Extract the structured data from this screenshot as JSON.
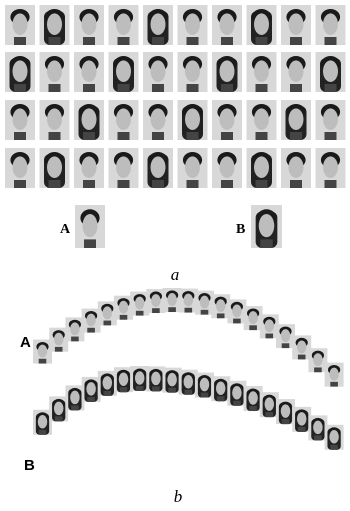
{
  "panel_a": {
    "labels": [
      "A",
      "B"
    ],
    "caption": "a"
  },
  "panel_b": {
    "labels": [
      "A",
      "B"
    ],
    "caption": "b"
  }
}
